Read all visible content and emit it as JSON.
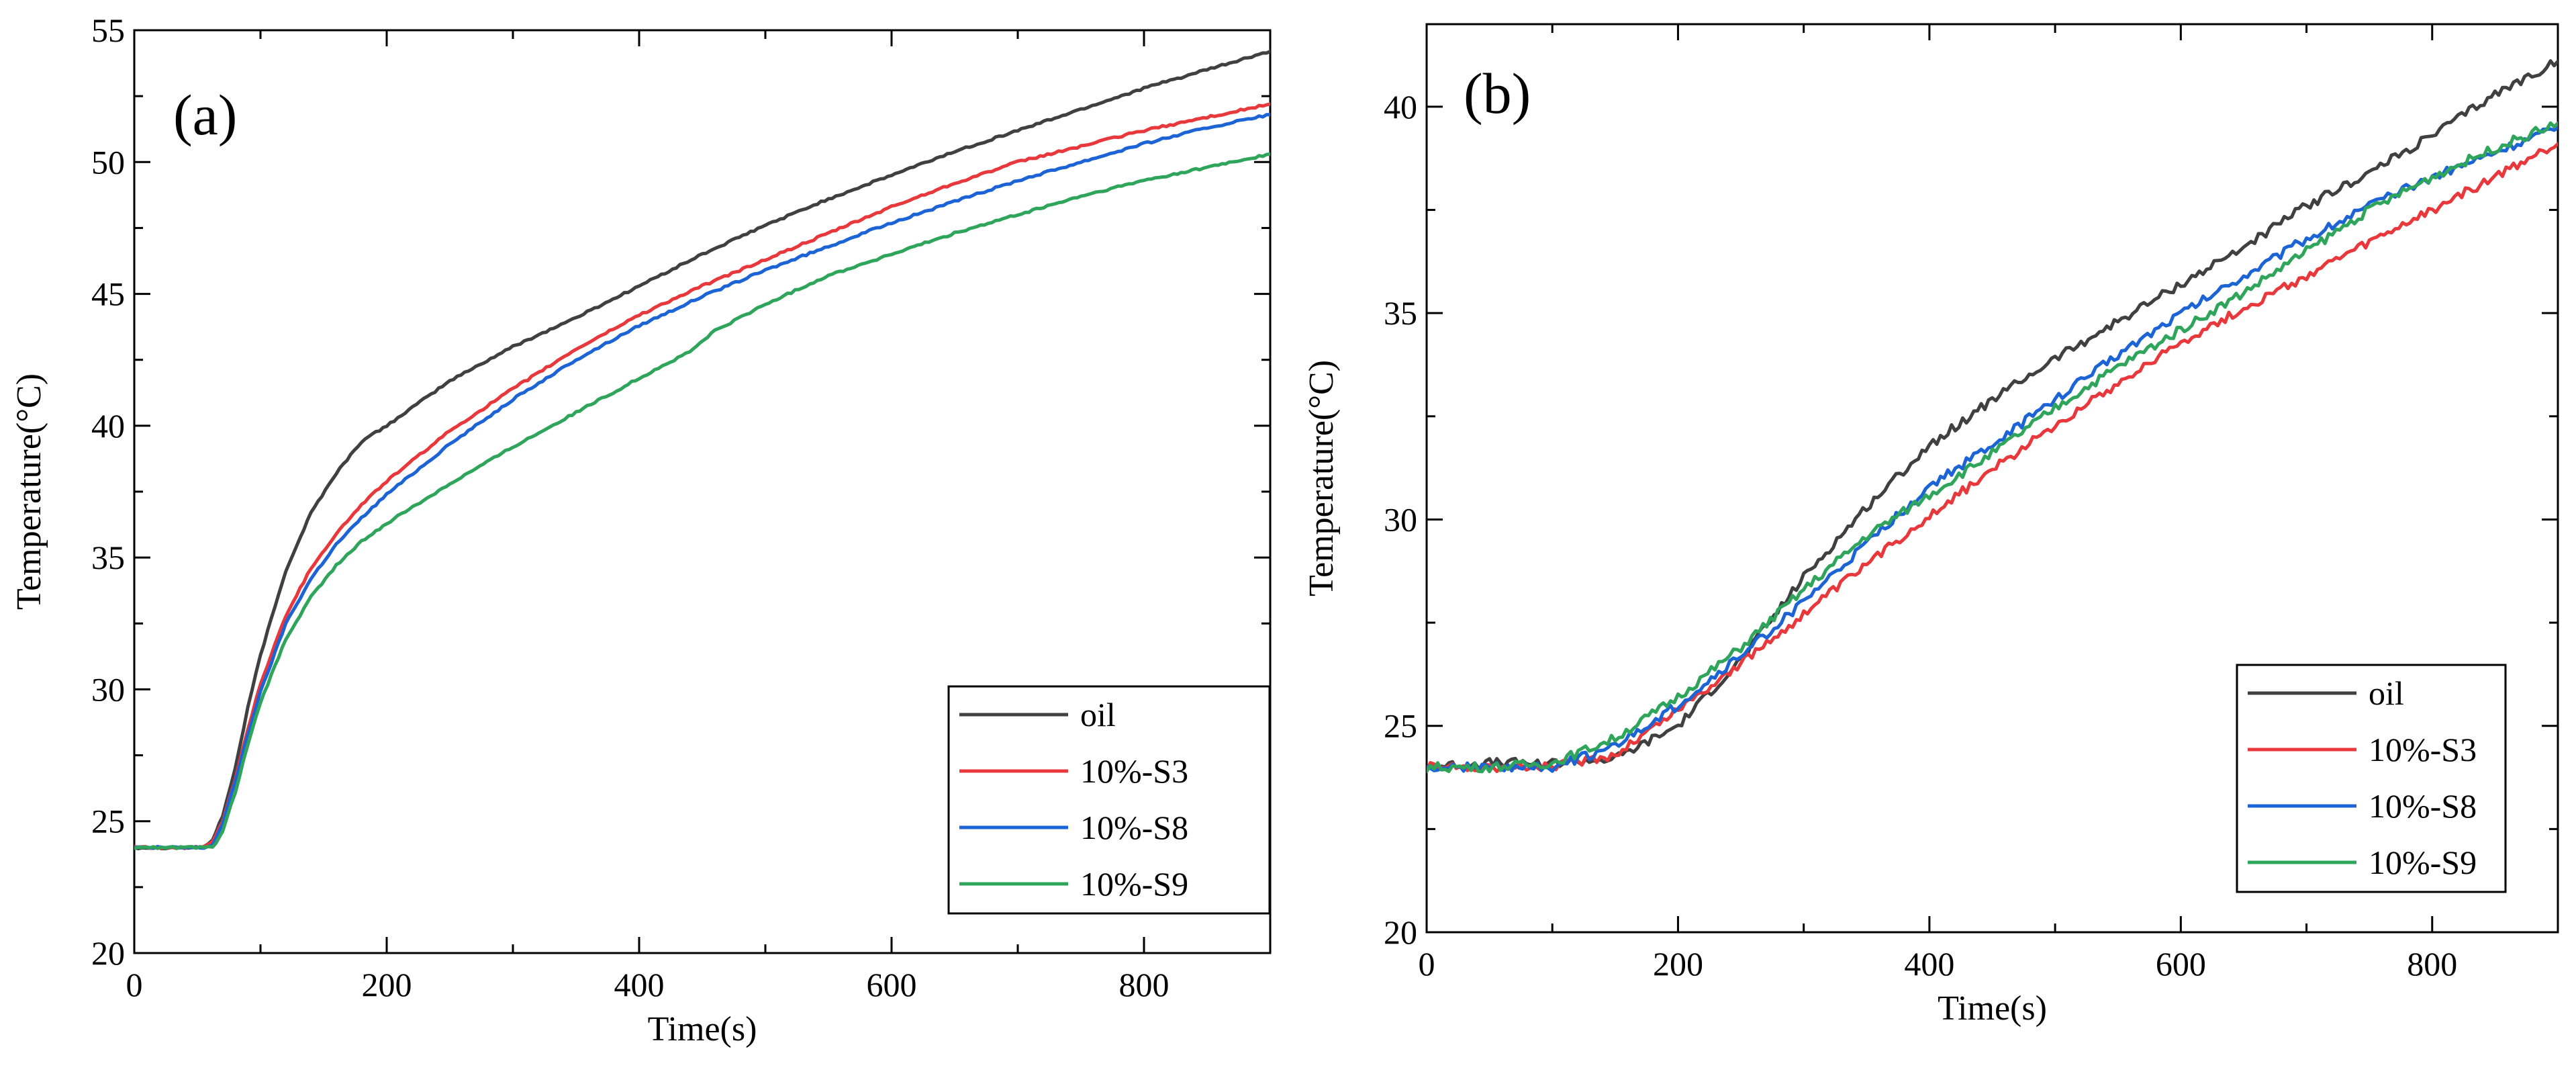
{
  "chart_data": [
    {
      "type": "line",
      "panel_label": "(a)",
      "xlabel": "Time(s)",
      "ylabel": "Temperature(°C)",
      "xlim": [
        0,
        900
      ],
      "ylim": [
        20,
        55
      ],
      "xticks": [
        0,
        200,
        400,
        600,
        800
      ],
      "yticks": [
        20,
        25,
        30,
        35,
        40,
        45,
        50,
        55
      ],
      "legend_position": "bottom-right",
      "series": [
        {
          "name": "oil",
          "color": "#404040",
          "x": [
            0,
            55,
            62,
            70,
            80,
            90,
            100,
            120,
            140,
            160,
            180,
            200,
            250,
            300,
            350,
            400,
            450,
            500,
            550,
            600,
            650,
            700,
            750,
            800,
            850,
            900
          ],
          "y": [
            24.0,
            24.0,
            24.3,
            25.2,
            27.0,
            29.3,
            31.3,
            34.5,
            36.7,
            38.2,
            39.4,
            40.0,
            41.7,
            43.0,
            44.1,
            45.3,
            46.5,
            47.6,
            48.6,
            49.5,
            50.4,
            51.2,
            52.0,
            52.8,
            53.5,
            54.2
          ]
        },
        {
          "name": "10%-S3",
          "color": "#e8383b",
          "x": [
            0,
            55,
            62,
            70,
            80,
            90,
            100,
            120,
            140,
            160,
            180,
            200,
            250,
            300,
            350,
            400,
            450,
            500,
            550,
            600,
            650,
            700,
            750,
            800,
            850,
            900
          ],
          "y": [
            24.0,
            24.0,
            24.2,
            25.0,
            26.6,
            28.5,
            30.2,
            32.8,
            34.6,
            35.9,
            37.0,
            37.9,
            39.8,
            41.4,
            42.9,
            44.2,
            45.3,
            46.3,
            47.3,
            48.3,
            49.2,
            50.0,
            50.6,
            51.2,
            51.7,
            52.2
          ]
        },
        {
          "name": "10%-S8",
          "color": "#1c64d6",
          "x": [
            0,
            55,
            62,
            70,
            80,
            90,
            100,
            120,
            140,
            160,
            180,
            200,
            250,
            300,
            350,
            400,
            450,
            500,
            550,
            600,
            650,
            700,
            750,
            800,
            850,
            900
          ],
          "y": [
            24.0,
            24.0,
            24.1,
            24.9,
            26.5,
            28.3,
            29.9,
            32.5,
            34.2,
            35.5,
            36.5,
            37.4,
            39.3,
            41.0,
            42.5,
            43.8,
            44.9,
            45.9,
            46.8,
            47.7,
            48.5,
            49.3,
            50.0,
            50.7,
            51.3,
            51.8
          ]
        },
        {
          "name": "10%-S9",
          "color": "#2ea55a",
          "x": [
            0,
            55,
            62,
            70,
            80,
            90,
            100,
            120,
            140,
            160,
            180,
            200,
            250,
            300,
            350,
            400,
            440,
            460,
            500,
            550,
            600,
            650,
            700,
            750,
            800,
            850,
            900
          ],
          "y": [
            24.0,
            24.0,
            24.0,
            24.6,
            26.1,
            27.9,
            29.5,
            31.9,
            33.5,
            34.7,
            35.6,
            36.3,
            37.8,
            39.2,
            40.5,
            41.8,
            42.8,
            43.6,
            44.6,
            45.7,
            46.5,
            47.3,
            48.0,
            48.7,
            49.3,
            49.8,
            50.3
          ]
        }
      ],
      "legend": [
        "oil",
        "10%-S3",
        "10%-S8",
        "10%-S9"
      ]
    },
    {
      "type": "line",
      "panel_label": "(b)",
      "xlabel": "Time(s)",
      "ylabel": "Temperature(°C)",
      "xlim": [
        0,
        900
      ],
      "ylim": [
        20,
        42
      ],
      "xticks": [
        0,
        200,
        400,
        600,
        800
      ],
      "yticks": [
        20,
        25,
        30,
        35,
        40
      ],
      "legend_position": "bottom-right",
      "series": [
        {
          "name": "oil",
          "color": "#404040",
          "x": [
            0,
            50,
            100,
            150,
            200,
            250,
            300,
            350,
            400,
            450,
            500,
            550,
            600,
            650,
            700,
            750,
            800,
            850,
            900
          ],
          "y": [
            24.0,
            24.1,
            24.1,
            24.2,
            25.0,
            26.6,
            28.6,
            30.3,
            31.8,
            32.9,
            33.9,
            34.8,
            35.7,
            36.6,
            37.6,
            38.4,
            39.3,
            40.3,
            41.1
          ]
        },
        {
          "name": "10%-S3",
          "color": "#e8383b",
          "x": [
            0,
            50,
            100,
            150,
            200,
            250,
            300,
            350,
            400,
            450,
            500,
            550,
            600,
            650,
            700,
            750,
            800,
            850,
            900
          ],
          "y": [
            24.0,
            24.0,
            24.0,
            24.3,
            25.4,
            26.5,
            27.7,
            28.9,
            30.1,
            31.2,
            32.3,
            33.3,
            34.3,
            35.1,
            35.9,
            36.7,
            37.5,
            38.3,
            39.1
          ]
        },
        {
          "name": "10%-S8",
          "color": "#1c64d6",
          "x": [
            0,
            50,
            100,
            150,
            200,
            250,
            300,
            350,
            400,
            450,
            500,
            550,
            600,
            650,
            700,
            750,
            800,
            850,
            900
          ],
          "y": [
            24.0,
            24.0,
            24.0,
            24.5,
            25.5,
            26.7,
            28.0,
            29.4,
            30.8,
            31.8,
            32.9,
            34.0,
            35.0,
            35.9,
            36.8,
            37.6,
            38.3,
            38.9,
            39.5
          ]
        },
        {
          "name": "10%-S9",
          "color": "#2ea55a",
          "x": [
            0,
            50,
            100,
            150,
            200,
            250,
            300,
            350,
            400,
            450,
            500,
            550,
            600,
            650,
            700,
            750,
            800,
            850,
            900
          ],
          "y": [
            24.0,
            24.0,
            24.1,
            24.7,
            25.7,
            26.9,
            28.3,
            29.6,
            30.6,
            31.6,
            32.7,
            33.7,
            34.6,
            35.5,
            36.5,
            37.5,
            38.3,
            39.0,
            39.6
          ]
        }
      ],
      "legend": [
        "oil",
        "10%-S3",
        "10%-S8",
        "10%-S9"
      ]
    }
  ]
}
